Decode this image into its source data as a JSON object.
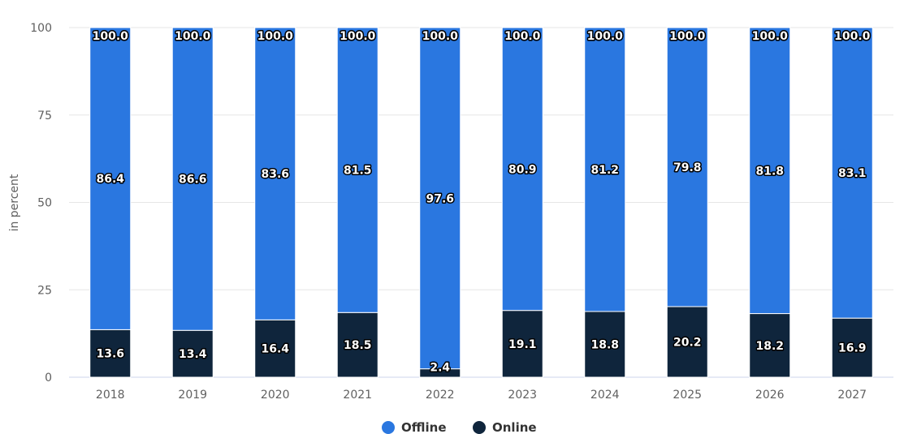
{
  "chart_data": {
    "type": "bar",
    "stacked": true,
    "categories": [
      "2018",
      "2019",
      "2020",
      "2021",
      "2022",
      "2023",
      "2024",
      "2025",
      "2026",
      "2027"
    ],
    "series": [
      {
        "name": "Offline",
        "color": "#2a77e0",
        "values": [
          86.4,
          86.6,
          83.6,
          81.5,
          97.6,
          80.9,
          81.2,
          79.8,
          81.8,
          83.1
        ]
      },
      {
        "name": "Online",
        "color": "#0f253c",
        "values": [
          13.6,
          13.4,
          16.4,
          18.5,
          2.4,
          19.1,
          18.8,
          20.2,
          18.2,
          16.9
        ]
      }
    ],
    "totals": [
      "100.0",
      "100.0",
      "100.0",
      "100.0",
      "100.0",
      "100.0",
      "100.0",
      "100.0",
      "100.0",
      "100.0"
    ],
    "ylabel": "in percent",
    "ylim": [
      0,
      100
    ],
    "yticks": [
      0,
      25,
      50,
      75,
      100
    ],
    "grid": true,
    "legend_position": "bottom-center"
  }
}
